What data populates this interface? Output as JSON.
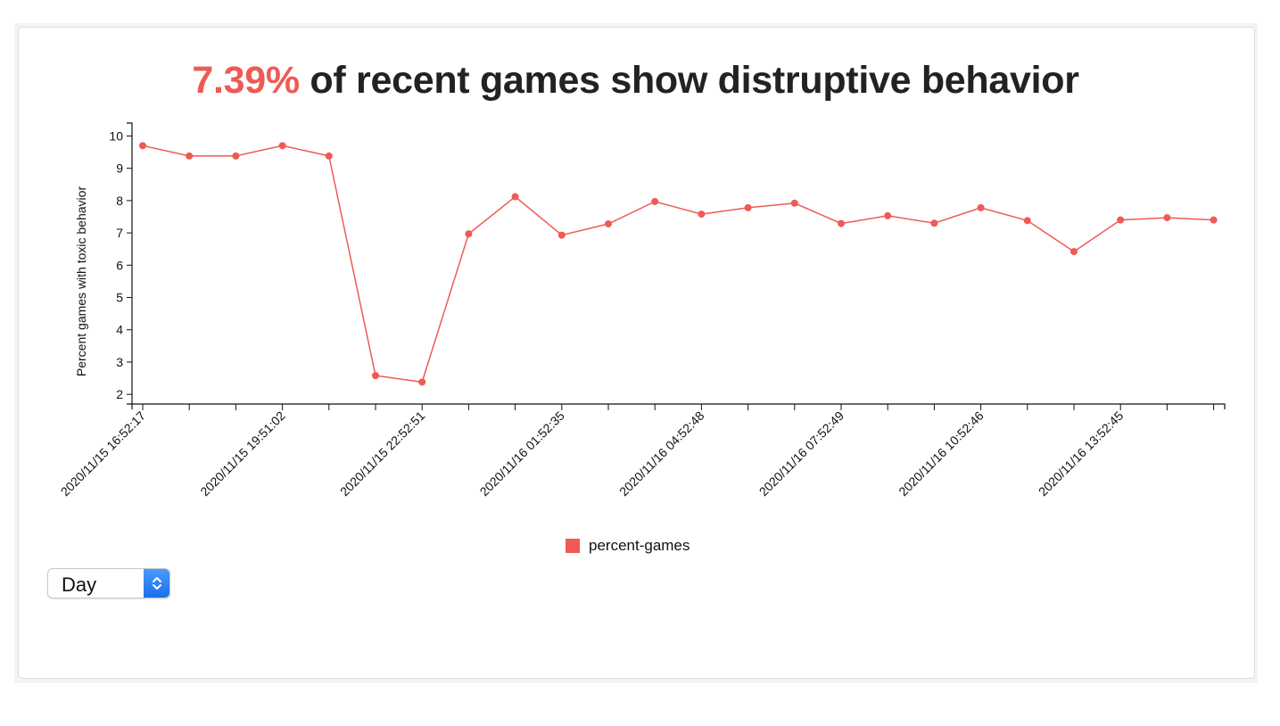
{
  "headline": {
    "percent": "7.39%",
    "text": " of recent games show distruptive behavior"
  },
  "colors": {
    "accent": "#ee5a54",
    "line": "#ee5a54",
    "axis": "#111111"
  },
  "legend": {
    "label": "percent-games"
  },
  "period_select": {
    "value": "Day",
    "icon": "chevron-up-down-icon"
  },
  "chart_data": {
    "type": "line",
    "ylabel": "Percent games with toxic behavior",
    "xlabel": "",
    "ylim": [
      1.7,
      10.4
    ],
    "yticks": [
      2,
      3,
      4,
      5,
      6,
      7,
      8,
      9,
      10
    ],
    "x": [
      "2020/11/15 16:52:17",
      "2020/11/15 17:52:00",
      "2020/11/15 18:51:30",
      "2020/11/15 19:51:02",
      "2020/11/15 20:51:00",
      "2020/11/15 21:52:00",
      "2020/11/15 22:52:51",
      "2020/11/15 23:52:00",
      "2020/11/16 00:52:00",
      "2020/11/16 01:52:35",
      "2020/11/16 02:52:00",
      "2020/11/16 03:52:00",
      "2020/11/16 04:52:48",
      "2020/11/16 05:52:00",
      "2020/11/16 06:52:00",
      "2020/11/16 07:52:49",
      "2020/11/16 08:52:00",
      "2020/11/16 09:52:00",
      "2020/11/16 10:52:46",
      "2020/11/16 11:52:00",
      "2020/11/16 12:52:00",
      "2020/11/16 13:52:45",
      "2020/11/16 14:52:00",
      "2020/11/16 15:52:00"
    ],
    "tick_labels": [
      "2020/11/15 16:52:17",
      "",
      "",
      "2020/11/15 19:51:02",
      "",
      "",
      "2020/11/15 22:52:51",
      "",
      "",
      "2020/11/16 01:52:35",
      "",
      "",
      "2020/11/16 04:52:48",
      "",
      "",
      "2020/11/16 07:52:49",
      "",
      "",
      "2020/11/16 10:52:46",
      "",
      "",
      "2020/11/16 13:52:45",
      "",
      ""
    ],
    "series": [
      {
        "name": "percent-games",
        "values": [
          9.7,
          9.38,
          9.38,
          9.7,
          9.38,
          2.58,
          2.38,
          6.97,
          8.12,
          6.93,
          7.28,
          7.97,
          7.58,
          7.78,
          7.92,
          7.29,
          7.53,
          7.3,
          7.78,
          7.38,
          6.42,
          7.4,
          7.47,
          7.4
        ]
      }
    ]
  }
}
